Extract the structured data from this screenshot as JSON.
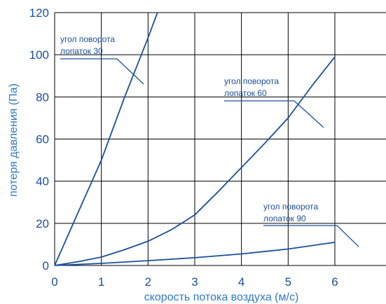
{
  "chart_data": {
    "type": "line",
    "xlabel": "скорость потока воздуха (м/с)",
    "ylabel": "потеря давления (Па)",
    "xlim": [
      0,
      6
    ],
    "ylim": [
      0,
      120
    ],
    "x_ticks": [
      "0",
      "1",
      "2",
      "3",
      "4",
      "5",
      "6"
    ],
    "y_ticks": [
      "0",
      "20",
      "40",
      "60",
      "80",
      "100",
      "120"
    ],
    "grid": true,
    "colors": {
      "line": "#1a4f9c",
      "grid": "#000000",
      "text": "#2f78c4"
    },
    "series": [
      {
        "x": [
          0,
          0.5,
          1.0,
          1.5,
          2.0,
          2.2
        ],
        "y": [
          0,
          25,
          50,
          80,
          108,
          120
        ]
      },
      {
        "x": [
          0,
          0.5,
          1.0,
          1.5,
          2.0,
          2.5,
          3.0,
          3.5,
          4.0,
          4.5,
          5.0,
          5.5,
          6.0
        ],
        "y": [
          0,
          1.8,
          4,
          7.5,
          11.5,
          17,
          24,
          35,
          46.5,
          58,
          70,
          85,
          99
        ]
      },
      {
        "x": [
          0,
          1,
          2,
          3,
          4,
          5,
          6
        ],
        "y": [
          0,
          1,
          2.3,
          3.7,
          5.5,
          7.8,
          11
        ]
      }
    ],
    "annotations": [
      {
        "line1": "угол поворота",
        "line2": "лопаток 30",
        "series": 0
      },
      {
        "line1": "угол поворота",
        "line2": "лопаток 60",
        "series": 1
      },
      {
        "line1": "угол поворота",
        "line2": "лопаток 90",
        "series": 2
      }
    ]
  }
}
